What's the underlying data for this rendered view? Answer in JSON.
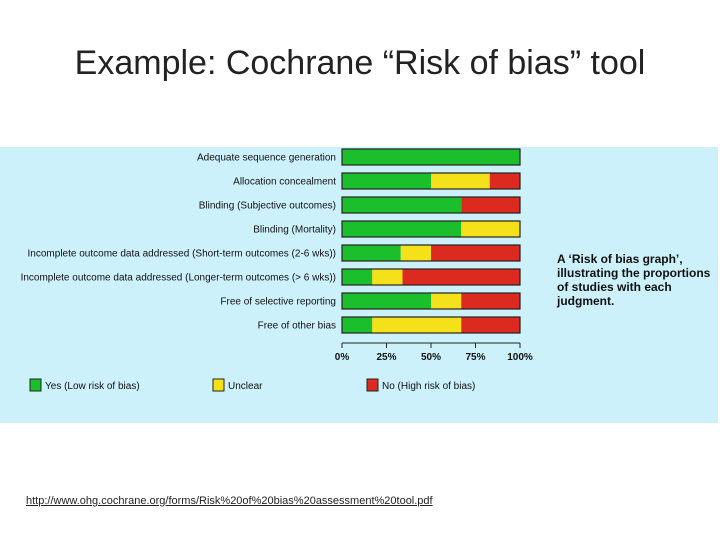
{
  "slide": {
    "title": "Example: Cochrane “Risk of bias” tool",
    "caption": "A ‘Risk of bias graph’, illustrating the proportions of studies with each judgment.",
    "source_url": "http://www.ohg.cochrane.org/forms/Risk%20of%20bias%20assessment%20tool.pdf"
  },
  "colors": {
    "panel_background": "#ccf1fb",
    "yes": "#1bbf2b",
    "unclear": "#f5e11a",
    "no": "#dc2a1f"
  },
  "chart_data": {
    "type": "bar",
    "orientation": "horizontal",
    "stacked": true,
    "categories": [
      "Adequate sequence generation",
      "Allocation concealment",
      "Blinding (Subjective outcomes)",
      "Blinding (Mortality)",
      "Incomplete outcome data addressed (Short-term outcomes (2-6 wks))",
      "Incomplete outcome data addressed (Longer-term outcomes (> 6 wks))",
      "Free of selective reporting",
      "Free of other bias"
    ],
    "series": [
      {
        "name": "Yes (Low risk of bias)",
        "color": "#1bbf2b",
        "values": [
          100,
          50,
          67,
          67,
          33,
          17,
          50,
          17
        ]
      },
      {
        "name": "Unclear",
        "color": "#f5e11a",
        "values": [
          0,
          33,
          0,
          33,
          17,
          17,
          17,
          50
        ]
      },
      {
        "name": "No (High risk of bias)",
        "color": "#dc2a1f",
        "values": [
          0,
          17,
          33,
          0,
          50,
          66,
          33,
          33
        ]
      }
    ],
    "xticks": [
      "0%",
      "25%",
      "50%",
      "75%",
      "100%"
    ],
    "xlim": [
      0,
      100
    ],
    "legend_position": "bottom",
    "grid": false
  }
}
